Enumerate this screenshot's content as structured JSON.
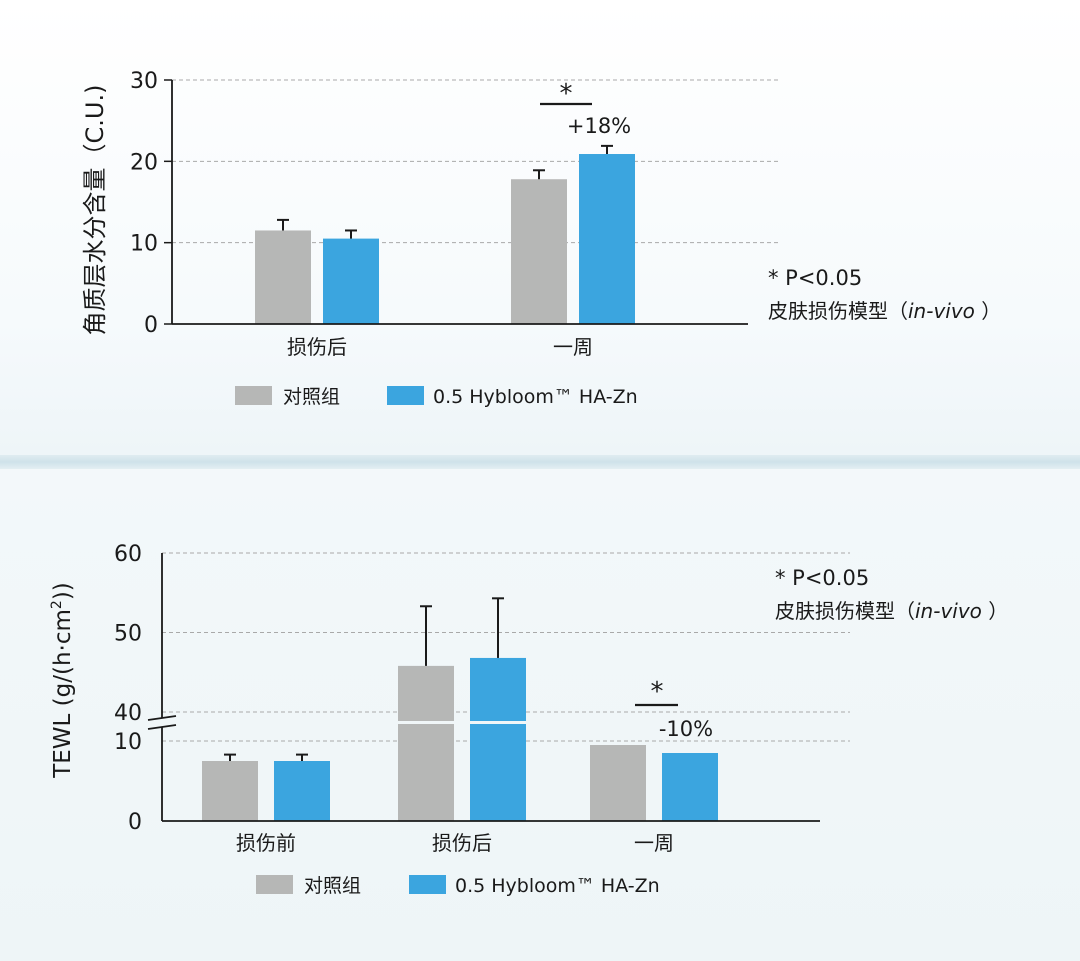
{
  "colors": {
    "control": "#b6b7b6",
    "treated": "#3ba5df",
    "grid": "#a9a9a9",
    "axis": "#1a1a1a"
  },
  "chart_data": [
    {
      "type": "bar",
      "ylabel": "角质层水分含量（C.U.)",
      "categories": [
        "损伤后",
        "一周"
      ],
      "series": [
        {
          "name": "对照组",
          "values": [
            11.5,
            17.8
          ],
          "errors": [
            1.3,
            1.1
          ]
        },
        {
          "name": "0.5 Hybloom™ HA-Zn",
          "values": [
            10.5,
            20.9
          ],
          "errors": [
            1.0,
            1.0
          ]
        }
      ],
      "ylim": [
        0,
        30
      ],
      "yticks": [
        "0",
        "10",
        "20",
        "30"
      ],
      "grid": true,
      "annotation": {
        "star": "*",
        "change": "+18%"
      },
      "note": {
        "line1": "* P<0.05",
        "line2_prefix": "皮肤损伤模型（",
        "line2_italic": "in-vivo",
        "line2_suffix": " ）"
      },
      "legend": [
        "对照组",
        "0.5 Hybloom™ HA-Zn"
      ]
    },
    {
      "type": "bar",
      "ylabel": "TEWL (g/(h·cm²))",
      "categories": [
        "损伤前",
        "损伤后",
        "一周"
      ],
      "series": [
        {
          "name": "对照组",
          "values": [
            7.5,
            45.8,
            9.5
          ],
          "errors": [
            0.8,
            7.5,
            0
          ]
        },
        {
          "name": "0.5 Hybloom™ HA-Zn",
          "values": [
            7.5,
            46.8,
            8.5
          ],
          "errors": [
            0.8,
            7.5,
            0
          ]
        }
      ],
      "y_break": {
        "lower_range": [
          0,
          10
        ],
        "upper_range": [
          40,
          60
        ]
      },
      "yticks": [
        "0",
        "10",
        "40",
        "50",
        "60"
      ],
      "grid": true,
      "annotation": {
        "star": "*",
        "change": "-10%"
      },
      "note": {
        "line1": "* P<0.05",
        "line2_prefix": "皮肤损伤模型（",
        "line2_italic": "in-vivo",
        "line2_suffix": " ）"
      },
      "legend": [
        "对照组",
        "0.5 Hybloom™ HA-Zn"
      ]
    }
  ]
}
